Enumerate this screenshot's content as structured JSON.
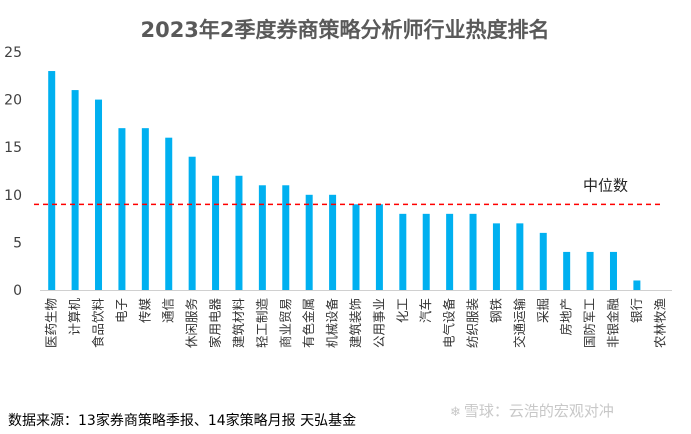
{
  "chart_data": {
    "type": "bar",
    "title": "2023年2季度券商策略分析师行业热度排名",
    "categories": [
      "医药生物",
      "计算机",
      "食品饮料",
      "电子",
      "传媒",
      "通信",
      "休闲服务",
      "家用电器",
      "建筑材料",
      "轻工制造",
      "商业贸易",
      "有色金属",
      "机械设备",
      "建筑装饰",
      "公用事业",
      "化工",
      "汽车",
      "电气设备",
      "纺织服装",
      "钢铁",
      "交通运输",
      "采掘",
      "房地产",
      "国防军工",
      "非银金融",
      "银行",
      "农林牧渔"
    ],
    "values": [
      23,
      21,
      20,
      17,
      17,
      16,
      14,
      12,
      12,
      11,
      11,
      10,
      10,
      9,
      9,
      8,
      8,
      8,
      8,
      7,
      7,
      6,
      4,
      4,
      4,
      1,
      0
    ],
    "ylim": [
      0,
      25
    ],
    "yticks": [
      0,
      5,
      10,
      15,
      20,
      25
    ],
    "grid": false,
    "median_line": {
      "value": 9,
      "label": "中位数",
      "color": "#ff0000"
    },
    "bar_color": "#00b0f0",
    "xlabel": "",
    "ylabel": ""
  },
  "footer": {
    "source": "数据来源：13家券商策略季报、14家策略月报 天弘基金",
    "watermark": "雪球：云浩的宏观对冲",
    "watermark_icon": "snowball-logo-icon"
  }
}
